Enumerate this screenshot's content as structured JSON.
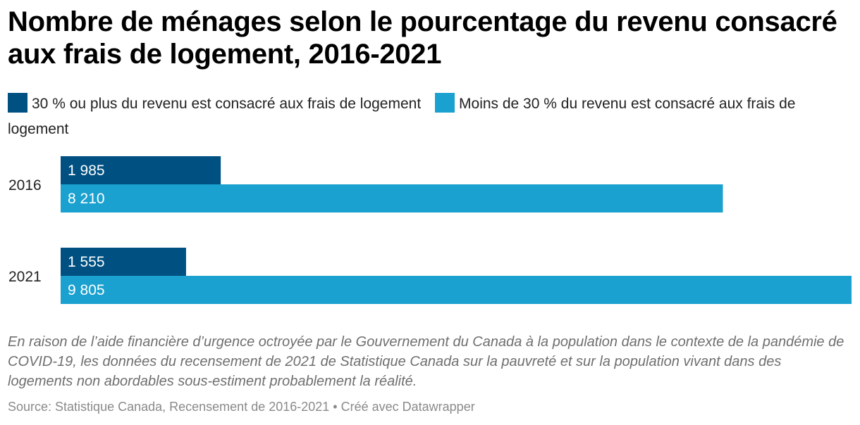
{
  "title": "Nombre de ménages selon le pourcentage du revenu consacré aux frais de logement, 2016-2021",
  "colors": {
    "series_dark": "#005182",
    "series_light": "#1ba1cf"
  },
  "chart_data": {
    "type": "bar",
    "orientation": "horizontal",
    "title": "Nombre de ménages selon le pourcentage du revenu consacré aux frais de logement, 2016-2021",
    "categories": [
      "2016",
      "2021"
    ],
    "series": [
      {
        "name": "30 % ou plus du revenu est consacré aux frais de logement",
        "values": [
          1985,
          1555
        ],
        "labels": [
          "1 985",
          "1 555"
        ],
        "color": "#005182"
      },
      {
        "name": "Moins de 30 % du revenu est consacré aux frais de logement",
        "values": [
          8210,
          9805
        ],
        "labels": [
          "8 210",
          "9 805"
        ],
        "color": "#1ba1cf"
      }
    ],
    "xlim": [
      0,
      9805
    ],
    "grid": false,
    "legend": "top"
  },
  "note": "En raison de l’aide financière d’urgence octroyée par le Gouvernement du Canada à la population dans le contexte de la pandémie de COVID-19, les données du recensement de 2021 de Statistique Canada sur la pauvreté et sur la population vivant dans des logements non abordables sous-estiment probablement la réalité.",
  "source": "Source: Statistique Canada, Recensement de 2016-2021 • Créé avec Datawrapper"
}
